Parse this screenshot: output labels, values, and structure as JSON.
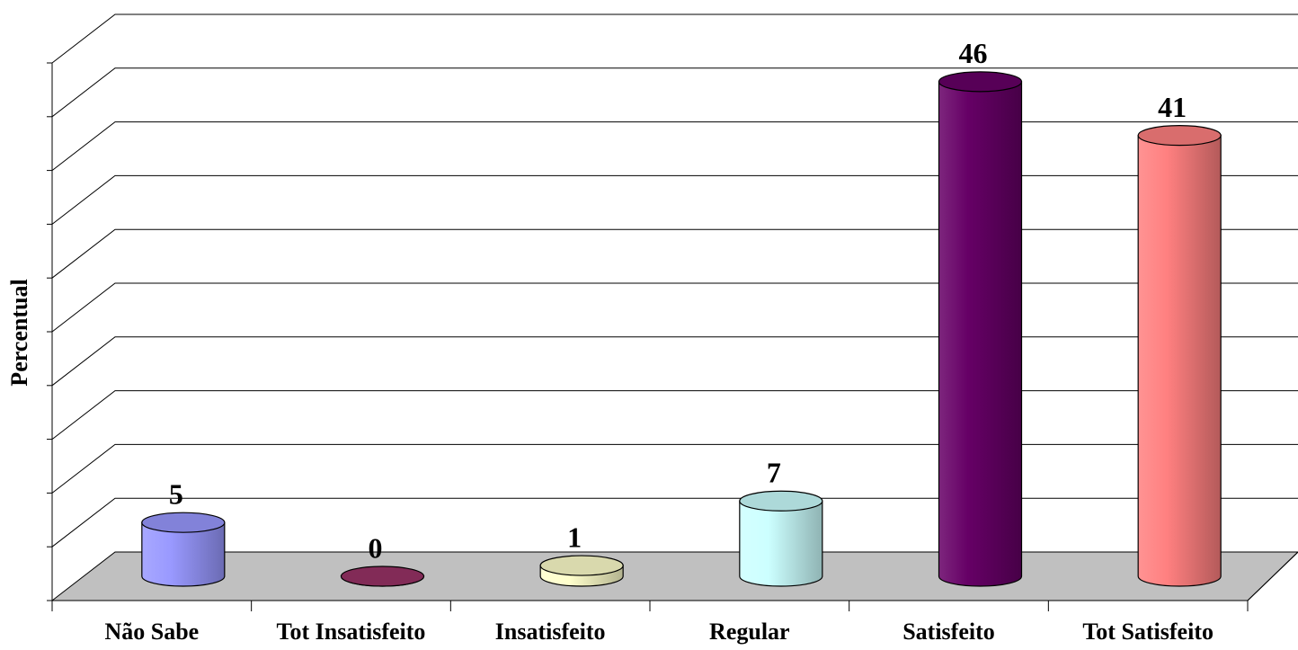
{
  "chart_data": {
    "type": "bar3d",
    "y_label": "Percentual",
    "categories": [
      "Não Sabe",
      "Tot Insatisfeito",
      "Insatisfeito",
      "Regular",
      "Satisfeito",
      "Tot Satisfeito"
    ],
    "values": [
      5,
      0,
      1,
      7,
      46,
      41
    ],
    "colors": [
      "#9999ff",
      "#993366",
      "#ffffcc",
      "#ccffff",
      "#660066",
      "#ff8080"
    ],
    "ylim": [
      0,
      50
    ],
    "yticks": [
      0,
      5,
      10,
      15,
      20,
      25,
      30,
      35,
      40,
      45,
      50
    ],
    "grid": true
  }
}
